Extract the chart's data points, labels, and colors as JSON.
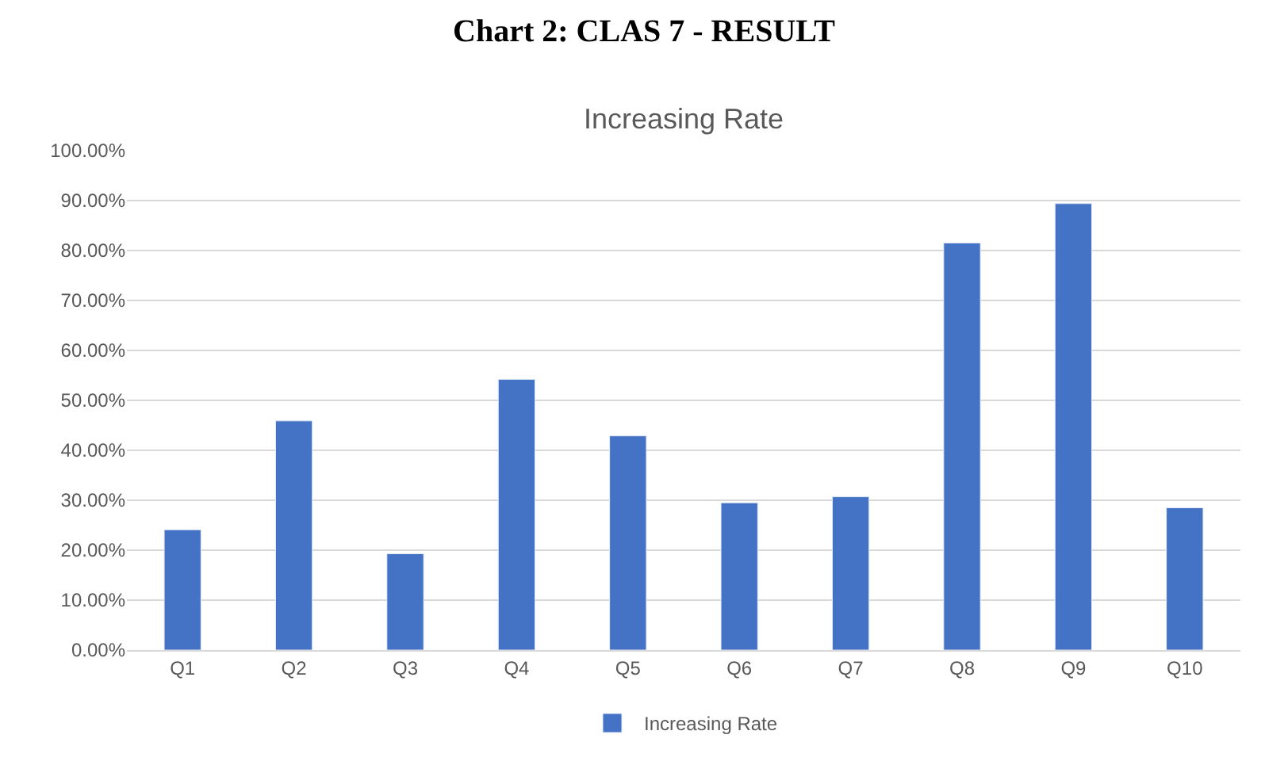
{
  "chart_data": {
    "type": "bar",
    "title": "Chart 2: CLAS 7 - RESULT",
    "subtitle": "Increasing Rate",
    "categories": [
      "Q1",
      "Q2",
      "Q3",
      "Q4",
      "Q5",
      "Q6",
      "Q7",
      "Q8",
      "Q9",
      "Q10"
    ],
    "series": [
      {
        "name": "Increasing Rate",
        "color": "#4472c4",
        "values": [
          24.1,
          45.9,
          19.3,
          54.2,
          42.9,
          29.5,
          30.7,
          81.5,
          89.4,
          28.5
        ]
      }
    ],
    "ylim": [
      0,
      100
    ],
    "yticks": [
      {
        "value": 0,
        "label": "0.00%"
      },
      {
        "value": 10,
        "label": "10.00%"
      },
      {
        "value": 20,
        "label": "20.00%"
      },
      {
        "value": 30,
        "label": "30.00%"
      },
      {
        "value": 40,
        "label": "40.00%"
      },
      {
        "value": 50,
        "label": "50.00%"
      },
      {
        "value": 60,
        "label": "60.00%"
      },
      {
        "value": 70,
        "label": "70.00%"
      },
      {
        "value": 80,
        "label": "80.00%"
      },
      {
        "value": 90,
        "label": "90.00%"
      },
      {
        "value": 100,
        "label": "100.00%"
      }
    ],
    "grid": "y",
    "legend": "bottom"
  }
}
